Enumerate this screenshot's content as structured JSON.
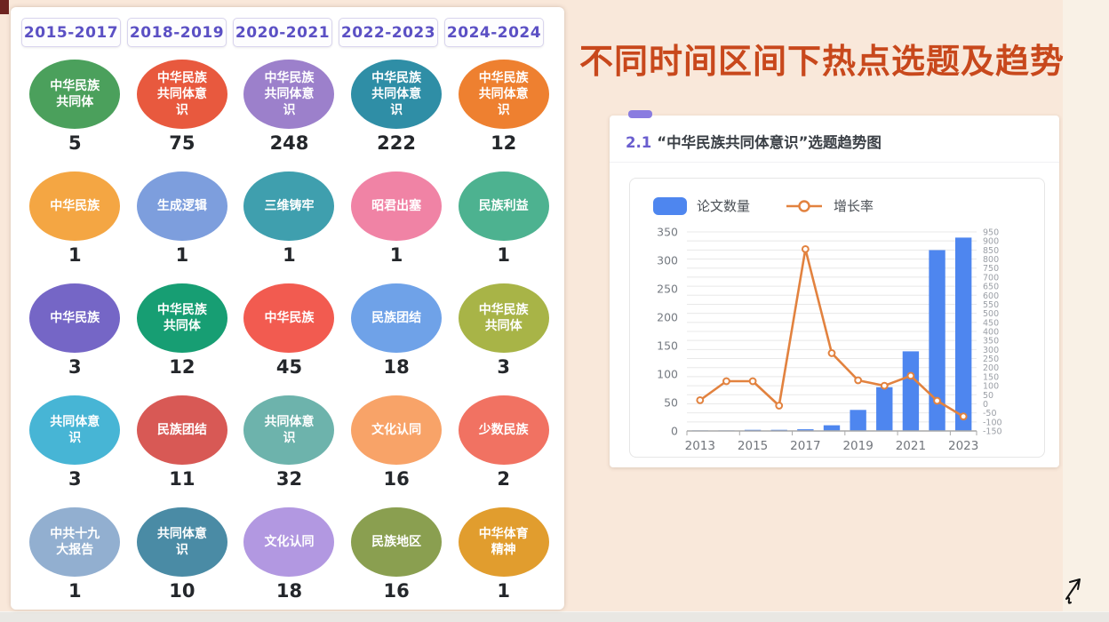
{
  "page": {
    "background": "#f9e8da",
    "title": "不同时间区间下热点选题及趋势",
    "title_color": "#c8481c",
    "tab_text_color": "#5b50c4"
  },
  "tabs": [
    {
      "label": "2015-2017"
    },
    {
      "label": "2018-2019"
    },
    {
      "label": "2020-2021"
    },
    {
      "label": "2022-2023"
    },
    {
      "label": "2024-2024"
    }
  ],
  "grid": {
    "rows": [
      {
        "cells": [
          {
            "label": "中华民族共同体",
            "count": "5",
            "color": "#4ba05c"
          },
          {
            "label": "中华民族共同体意识",
            "count": "75",
            "color": "#e8593e"
          },
          {
            "label": "中华民族共同体意识",
            "count": "248",
            "color": "#9c80cb"
          },
          {
            "label": "中华民族共同体意识",
            "count": "222",
            "color": "#2f8ea6"
          },
          {
            "label": "中华民族共同体意识",
            "count": "12",
            "color": "#ee8030"
          }
        ]
      },
      {
        "cells": [
          {
            "label": "中华民族",
            "count": "1",
            "color": "#f4a643"
          },
          {
            "label": "生成逻辑",
            "count": "1",
            "color": "#7d9edd"
          },
          {
            "label": "三维铸牢",
            "count": "1",
            "color": "#3f9fae"
          },
          {
            "label": "昭君出塞",
            "count": "1",
            "color": "#f083a5"
          },
          {
            "label": "民族利益",
            "count": "1",
            "color": "#4db290"
          }
        ]
      },
      {
        "cells": [
          {
            "label": "中华民族",
            "count": "3",
            "color": "#7566c6"
          },
          {
            "label": "中华民族共同体",
            "count": "12",
            "color": "#179e73"
          },
          {
            "label": "中华民族",
            "count": "45",
            "color": "#f25b50"
          },
          {
            "label": "民族团结",
            "count": "18",
            "color": "#6fa2e8"
          },
          {
            "label": "中华民族共同体",
            "count": "3",
            "color": "#a8b447"
          }
        ]
      },
      {
        "cells": [
          {
            "label": "共同体意识",
            "count": "3",
            "color": "#47b5d5"
          },
          {
            "label": "民族团结",
            "count": "11",
            "color": "#d85955"
          },
          {
            "label": "共同体意识",
            "count": "32",
            "color": "#6db3ac"
          },
          {
            "label": "文化认同",
            "count": "16",
            "color": "#f8a368"
          },
          {
            "label": "少数民族",
            "count": "2",
            "color": "#f17262"
          }
        ]
      },
      {
        "cells": [
          {
            "label": "中共十九大报告",
            "count": "1",
            "color": "#92afd0"
          },
          {
            "label": "共同体意识",
            "count": "10",
            "color": "#4a8ba5"
          },
          {
            "label": "文化认同",
            "count": "18",
            "color": "#b298e1"
          },
          {
            "label": "民族地区",
            "count": "16",
            "color": "#8a9f50"
          },
          {
            "label": "中华体育精神",
            "count": "1",
            "color": "#e19d2e"
          }
        ]
      }
    ]
  },
  "trend_card": {
    "section_number": "2.1",
    "section_title": "“中华民族共同体意识”选题趋势图",
    "legend": {
      "bar_label": "论文数量",
      "line_label": "增长率"
    }
  },
  "chart_data": {
    "type": "bar",
    "title": "2.1 “中华民族共同体意识”选题趋势图",
    "x": [
      "2013",
      "2014",
      "2015",
      "2016",
      "2017",
      "2018",
      "2019",
      "2020",
      "2021",
      "2022",
      "2023"
    ],
    "x_shown_ticks": [
      "2013",
      "2015",
      "2017",
      "2019",
      "2021",
      "2023"
    ],
    "series": [
      {
        "name": "论文数量",
        "type": "bar",
        "axis": "left",
        "color": "#4e86ef",
        "values": [
          1,
          1,
          2,
          2,
          3,
          10,
          37,
          77,
          140,
          318,
          340
        ]
      },
      {
        "name": "增长率",
        "type": "line",
        "axis": "right",
        "color": "#e2823f",
        "values": [
          20,
          125,
          125,
          -10,
          855,
          280,
          130,
          100,
          155,
          17,
          -70
        ]
      }
    ],
    "y_left": {
      "min": 0,
      "max": 350,
      "step": 50
    },
    "y_right": {
      "min": -150,
      "max": 950,
      "step": 50
    },
    "grid": true,
    "legend_position": "top-left",
    "xlabel": "",
    "ylabel": ""
  }
}
